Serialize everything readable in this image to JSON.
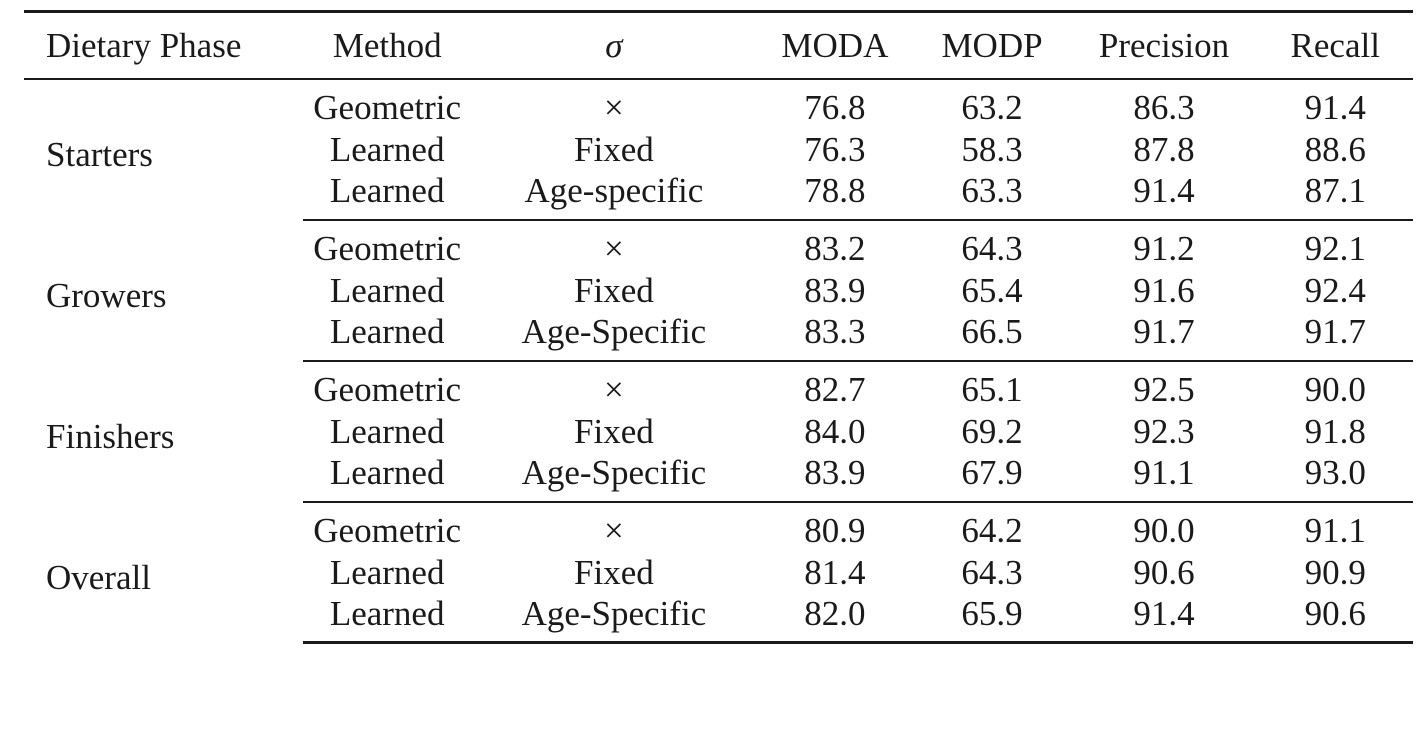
{
  "table": {
    "headers": {
      "dietary_phase": "Dietary Phase",
      "method": "Method",
      "sigma": "σ",
      "moda": "MODA",
      "modp": "MODP",
      "precision": "Precision",
      "recall": "Recall"
    },
    "groups": [
      {
        "phase": "Starters",
        "rows": [
          {
            "method": "Geometric",
            "sigma": "×",
            "moda": "76.8",
            "modp": "63.2",
            "precision": "86.3",
            "recall": "91.4"
          },
          {
            "method": "Learned",
            "sigma": "Fixed",
            "moda": "76.3",
            "modp": "58.3",
            "precision": "87.8",
            "recall": "88.6"
          },
          {
            "method": "Learned",
            "sigma": "Age-specific",
            "moda": "78.8",
            "modp": "63.3",
            "precision": "91.4",
            "recall": "87.1"
          }
        ]
      },
      {
        "phase": "Growers",
        "rows": [
          {
            "method": "Geometric",
            "sigma": "×",
            "moda": "83.2",
            "modp": "64.3",
            "precision": "91.2",
            "recall": "92.1"
          },
          {
            "method": "Learned",
            "sigma": "Fixed",
            "moda": "83.9",
            "modp": "65.4",
            "precision": "91.6",
            "recall": "92.4"
          },
          {
            "method": "Learned",
            "sigma": "Age-Specific",
            "moda": "83.3",
            "modp": "66.5",
            "precision": "91.7",
            "recall": "91.7"
          }
        ]
      },
      {
        "phase": "Finishers",
        "rows": [
          {
            "method": "Geometric",
            "sigma": "×",
            "moda": "82.7",
            "modp": "65.1",
            "precision": "92.5",
            "recall": "90.0"
          },
          {
            "method": "Learned",
            "sigma": "Fixed",
            "moda": "84.0",
            "modp": "69.2",
            "precision": "92.3",
            "recall": "91.8"
          },
          {
            "method": "Learned",
            "sigma": "Age-Specific",
            "moda": "83.9",
            "modp": "67.9",
            "precision": "91.1",
            "recall": "93.0"
          }
        ]
      },
      {
        "phase": "Overall",
        "rows": [
          {
            "method": "Geometric",
            "sigma": "×",
            "moda": "80.9",
            "modp": "64.2",
            "precision": "90.0",
            "recall": "91.1"
          },
          {
            "method": "Learned",
            "sigma": "Fixed",
            "moda": "81.4",
            "modp": "64.3",
            "precision": "90.6",
            "recall": "90.9"
          },
          {
            "method": "Learned",
            "sigma": "Age-Specific",
            "moda": "82.0",
            "modp": "65.9",
            "precision": "91.4",
            "recall": "90.6"
          }
        ]
      }
    ]
  }
}
